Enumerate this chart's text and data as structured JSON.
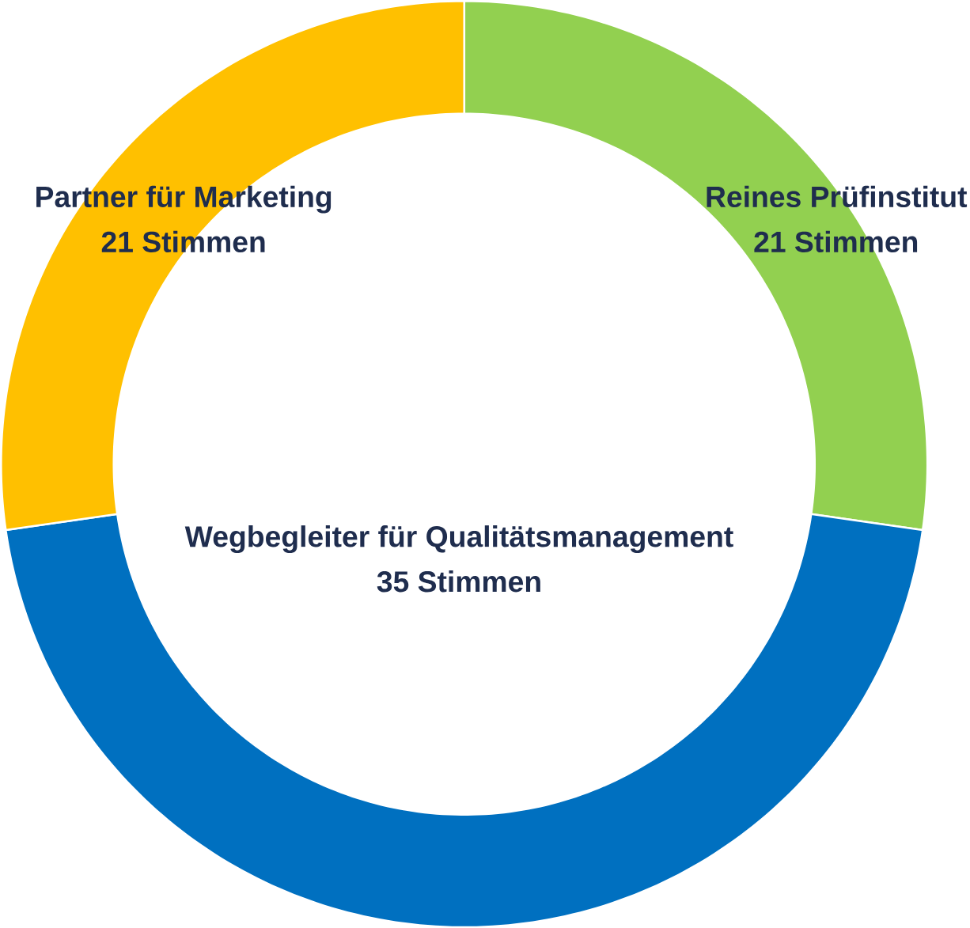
{
  "chart_data": {
    "type": "donut",
    "categories": [
      "Reines Prüfinstitut",
      "Wegbegleiter für Qualitätsmanagement",
      "Partner für Marketing"
    ],
    "values": [
      21,
      35,
      21
    ],
    "value_labels": [
      "21 Stimmen",
      "35 Stimmen",
      "21 Stimmen"
    ],
    "colors": [
      "#92d050",
      "#0070c0",
      "#ffc000"
    ]
  }
}
